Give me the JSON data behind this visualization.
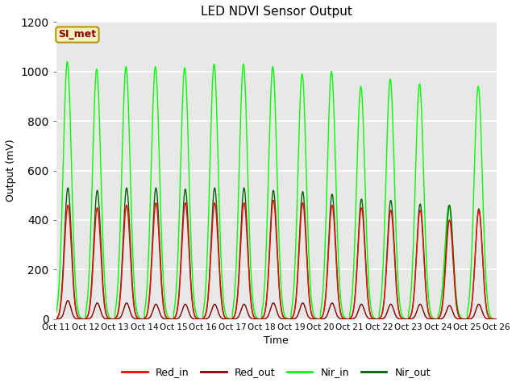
{
  "title": "LED NDVI Sensor Output",
  "xlabel": "Time",
  "ylabel": "Output (mV)",
  "ylim": [
    0,
    1200
  ],
  "annotation_text": "SI_met",
  "annotation_bg": "#f5f0c0",
  "annotation_border": "#b8960a",
  "annotation_text_color": "#8b0000",
  "plot_bg_color": "#e8e8e8",
  "series": {
    "Red_in": {
      "color": "#ff0000",
      "lw": 1.0
    },
    "Red_out": {
      "color": "#800000",
      "lw": 1.0
    },
    "Nir_in": {
      "color": "#00ff00",
      "lw": 1.0
    },
    "Nir_out": {
      "color": "#006400",
      "lw": 1.0
    }
  },
  "tick_labels": [
    "Oct 11",
    "Oct 12",
    "Oct 13",
    "Oct 14",
    "Oct 15",
    "Oct 16",
    "Oct 17",
    "Oct 18",
    "Oct 19",
    "Oct 20",
    "Oct 21",
    "Oct 22",
    "Oct 23",
    "Oct 24",
    "Oct 25",
    "Oct 26"
  ],
  "n_cycles": 15,
  "peak_heights_red_in": [
    460,
    450,
    460,
    470,
    470,
    470,
    470,
    480,
    470,
    460,
    450,
    440,
    440,
    400,
    440
  ],
  "peak_heights_red_out": [
    75,
    65,
    65,
    60,
    60,
    60,
    60,
    65,
    65,
    65,
    60,
    60,
    60,
    55,
    60
  ],
  "peak_heights_nir_in": [
    1040,
    1010,
    1020,
    1020,
    1015,
    1030,
    1030,
    1020,
    990,
    1000,
    940,
    970,
    950,
    460,
    940
  ],
  "peak_heights_nir_out": [
    530,
    520,
    530,
    530,
    525,
    530,
    530,
    520,
    515,
    505,
    485,
    480,
    465,
    460,
    445
  ]
}
